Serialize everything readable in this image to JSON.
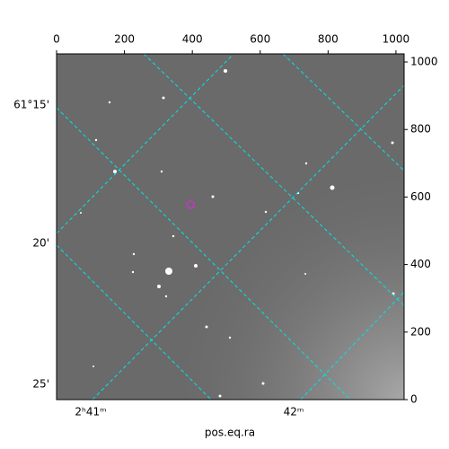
{
  "chart_data": {
    "type": "image",
    "xlim": [
      0,
      1024
    ],
    "ylim": [
      0,
      1024
    ],
    "xticks": [
      0,
      200,
      400,
      600,
      800,
      1000
    ],
    "yticks": [
      0,
      200,
      400,
      600,
      800,
      1000
    ],
    "xlabel": "pos.eq.ra",
    "dec_labels": [
      "61°15'",
      "20'",
      "25'"
    ],
    "ra_labels": [
      "2ʰ41ᵐ",
      "42ᵐ"
    ],
    "marker": {
      "x": [
        395
      ],
      "y": [
        577
      ],
      "color": "#cc33cc"
    }
  }
}
